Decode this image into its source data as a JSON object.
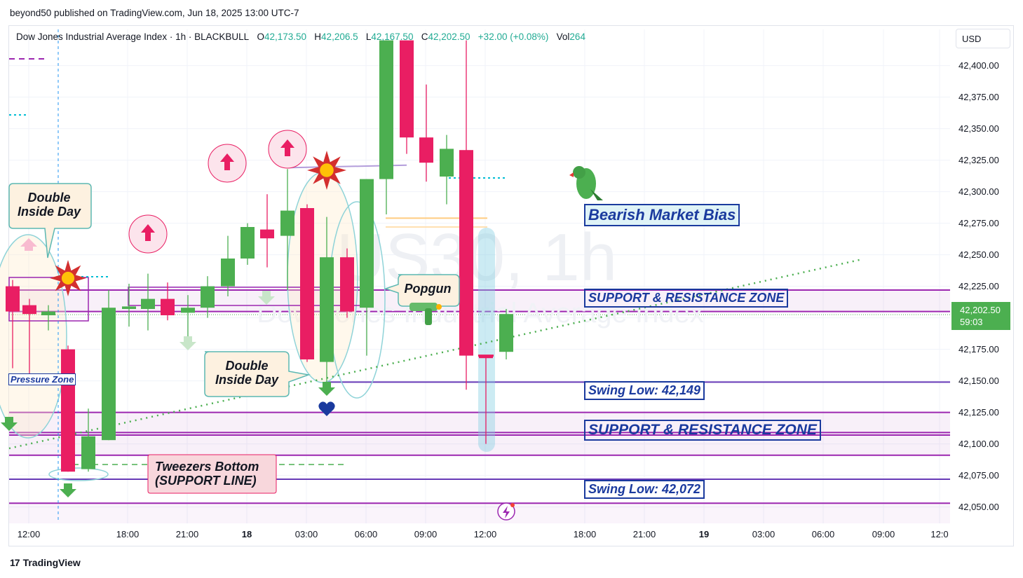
{
  "publisher": "beyond50 published on TradingView.com, Jun 18, 2025 13:00 UTC-7",
  "legend": {
    "symbol": "Dow Jones Industrial Average Index · 1h · BLACKBULL",
    "o_label": "O",
    "o": "42,173.50",
    "h_label": "H",
    "h": "42,206.5",
    "l_label": "L",
    "l": "42,167.50",
    "c_label": "C",
    "c": "42,202.50",
    "change": "+32.00 (+0.08%)",
    "vol_label": "Vol",
    "vol": "264"
  },
  "currency": "USD",
  "watermark": {
    "line1": "US30, 1h",
    "line2": "Dow Jones Industrial Average Index"
  },
  "price_tag": {
    "price": "42,202.50",
    "countdown": "59:03"
  },
  "brand": "TradingView",
  "colors": {
    "up": "#4caf50",
    "down": "#e91e63",
    "zone": "#9c27b0",
    "label": "#1a3a9e",
    "trend": "#4caf50"
  },
  "chart_data": {
    "type": "candlestick",
    "y_axis": {
      "min": 42037,
      "max": 42412,
      "ticks": [
        "42,400.00",
        "42,375.00",
        "42,350.00",
        "42,325.00",
        "42,300.00",
        "42,275.00",
        "42,250.00",
        "42,225.00",
        "42,200.00",
        "42,175.00",
        "42,150.00",
        "42,125.00",
        "42,100.00",
        "42,075.00",
        "42,050.00"
      ]
    },
    "x_axis": {
      "ticks": [
        "12:00",
        "18:00",
        "21:00",
        "18",
        "03:00",
        "06:00",
        "09:00",
        "12:00",
        "18:00",
        "21:00",
        "19",
        "03:00",
        "06:00",
        "09:00",
        "12:0"
      ]
    },
    "candles": [
      {
        "o": 42225,
        "h": 42230,
        "l": 42160,
        "c": 42205
      },
      {
        "o": 42210,
        "h": 42215,
        "l": 42150,
        "c": 42203
      },
      {
        "o": 42202,
        "h": 42210,
        "l": 42190,
        "c": 42205
      },
      {
        "o": 42175,
        "h": 42178,
        "l": 42078,
        "c": 42078
      },
      {
        "o": 42080,
        "h": 42128,
        "l": 42078,
        "c": 42106
      },
      {
        "o": 42103,
        "h": 42222,
        "l": 42103,
        "c": 42208
      },
      {
        "o": 42207,
        "h": 42227,
        "l": 42193,
        "c": 42209
      },
      {
        "o": 42207,
        "h": 42235,
        "l": 42190,
        "c": 42215
      },
      {
        "o": 42215,
        "h": 42228,
        "l": 42198,
        "c": 42202
      },
      {
        "o": 42204,
        "h": 42218,
        "l": 42185,
        "c": 42208
      },
      {
        "o": 42208,
        "h": 42233,
        "l": 42200,
        "c": 42225
      },
      {
        "o": 42225,
        "h": 42265,
        "l": 42217,
        "c": 42247
      },
      {
        "o": 42247,
        "h": 42275,
        "l": 42242,
        "c": 42272
      },
      {
        "o": 42270,
        "h": 42298,
        "l": 42240,
        "c": 42263
      },
      {
        "o": 42265,
        "h": 42318,
        "l": 42222,
        "c": 42285
      },
      {
        "o": 42287,
        "h": 42290,
        "l": 42165,
        "c": 42167
      },
      {
        "o": 42165,
        "h": 42280,
        "l": 42148,
        "c": 42248
      },
      {
        "o": 42248,
        "h": 42255,
        "l": 42200,
        "c": 42205
      },
      {
        "o": 42208,
        "h": 42310,
        "l": 42170,
        "c": 42310
      },
      {
        "o": 42310,
        "h": 42420,
        "l": 42282,
        "c": 42420
      },
      {
        "o": 42420,
        "h": 42420,
        "l": 42330,
        "c": 42343
      },
      {
        "o": 42343,
        "h": 42385,
        "l": 42308,
        "c": 42323
      },
      {
        "o": 42312,
        "h": 42345,
        "l": 42290,
        "c": 42334
      },
      {
        "o": 42333,
        "h": 42420,
        "l": 42143,
        "c": 42170
      },
      {
        "o": 42170,
        "h": 42170,
        "l": 42100,
        "c": 42168
      },
      {
        "o": 42173,
        "h": 42207,
        "l": 42167,
        "c": 42203
      }
    ],
    "annotations": {
      "bearish_bias": "Bearish Market Bias",
      "sr_zone_upper": "SUPPORT & RESISTANCE ZONE",
      "sr_zone_lower": "SUPPORT & RESISTANCE ZONE",
      "swing_low_1": "Swing Low: 42,149",
      "swing_low_2": "Swing Low: 42,072",
      "double_inside_1": [
        "Double",
        "Inside Day"
      ],
      "double_inside_2": [
        "Double",
        "Inside Day"
      ],
      "popgun": "Popgun",
      "tweezers": [
        "Tweezers Bottom",
        "(SUPPORT LINE)"
      ],
      "pressure_zone": "Pressure Zone"
    },
    "levels": [
      42222,
      42205,
      42149,
      42125,
      42109,
      42107,
      42091,
      42072,
      42053
    ],
    "grid": true
  }
}
